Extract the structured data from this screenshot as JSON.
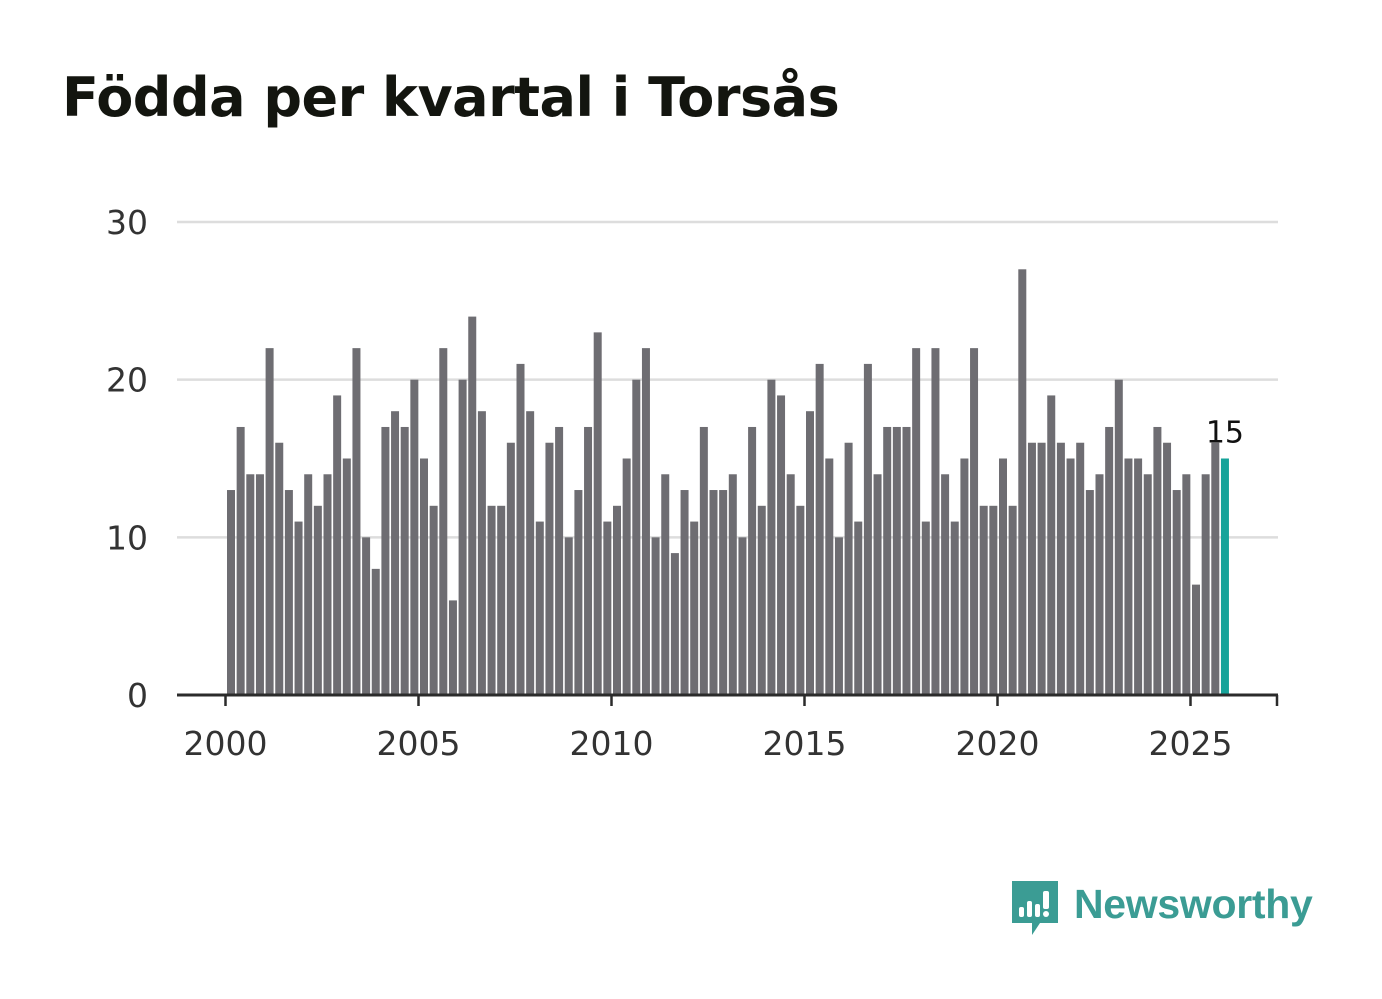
{
  "title": "Födda per kvartal i Torsås",
  "brand": {
    "name": "Newsworthy",
    "color": "#3b9c94"
  },
  "colors": {
    "bar": "#6e6d72",
    "highlight": "#16a39a",
    "grid": "#dddddd",
    "axis": "#2b2b2b",
    "tick_text": "#333333"
  },
  "chart_data": {
    "type": "bar",
    "title": "Födda per kvartal i Torsås",
    "xlabel": "",
    "ylabel": "",
    "ylim": [
      0,
      30
    ],
    "yticks": [
      0,
      10,
      20,
      30
    ],
    "xticks": [
      2000,
      2005,
      2010,
      2015,
      2020,
      2025
    ],
    "grid": true,
    "first_period": "2000 Q1",
    "last_period": "2025 Q4",
    "highlight_last": true,
    "last_label": "15",
    "values": [
      13,
      17,
      14,
      14,
      22,
      16,
      13,
      11,
      14,
      12,
      14,
      19,
      15,
      22,
      10,
      8,
      17,
      18,
      17,
      20,
      15,
      12,
      22,
      6,
      20,
      24,
      18,
      12,
      12,
      16,
      21,
      18,
      11,
      16,
      17,
      10,
      13,
      17,
      23,
      11,
      12,
      15,
      20,
      22,
      10,
      14,
      9,
      13,
      11,
      17,
      13,
      13,
      14,
      10,
      17,
      12,
      20,
      19,
      14,
      12,
      18,
      21,
      15,
      10,
      16,
      11,
      21,
      14,
      17,
      17,
      17,
      22,
      11,
      22,
      14,
      11,
      15,
      22,
      12,
      12,
      15,
      12,
      27,
      16,
      16,
      19,
      16,
      15,
      16,
      13,
      14,
      17,
      20,
      15,
      15,
      14,
      17,
      16,
      13,
      14,
      7,
      14,
      16,
      15
    ]
  }
}
